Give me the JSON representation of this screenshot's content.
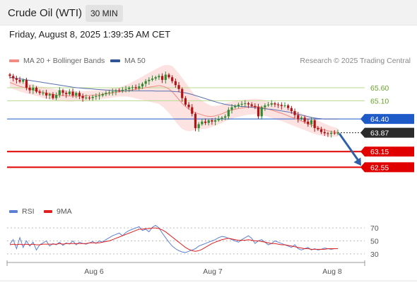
{
  "header": {
    "instrument": "Crude Oil (WTI)",
    "interval": "30 MIN",
    "datetime": "Friday, August 8, 2025 1:39:35 AM CET"
  },
  "legend": {
    "items": [
      {
        "label": "MA 20 + Bollinger Bands",
        "color": "#f28b82"
      },
      {
        "label": "MA 50",
        "color": "#2f5597"
      }
    ],
    "credit": "Research © 2025 Trading Central"
  },
  "rsi_legend": {
    "items": [
      {
        "label": "RSI",
        "color": "#5b7fd6"
      },
      {
        "label": "9MA",
        "color": "#e02020"
      }
    ]
  },
  "colors": {
    "bull": "#2e8b2e",
    "bear": "#b01414",
    "resistance": "#b9dc8f",
    "pivot": "#1e5ac8",
    "support": "#e00000",
    "current": "#2b2b2b",
    "band_fill": "#fde2e2",
    "ma20": "#f28b82",
    "ma50": "#5a6fb0",
    "forecast_arrow": "#2f5fa6"
  },
  "chart_data": {
    "type": "candlestick",
    "x_ticks": [
      "Aug 6",
      "Aug 7",
      "Aug 8"
    ],
    "ylim": [
      62.45,
      66.25
    ],
    "levels": [
      {
        "label": "65.60",
        "value": 65.6,
        "kind": "resistance"
      },
      {
        "label": "65.10",
        "value": 65.1,
        "kind": "resistance"
      },
      {
        "label": "64.40",
        "value": 64.4,
        "kind": "pivot"
      },
      {
        "label": "63.87",
        "value": 63.87,
        "kind": "current"
      },
      {
        "label": "63.15",
        "value": 63.15,
        "kind": "support"
      },
      {
        "label": "62.55",
        "value": 62.55,
        "kind": "support"
      }
    ],
    "closes": [
      66.05,
      65.96,
      65.9,
      65.83,
      65.9,
      65.6,
      65.5,
      65.6,
      65.45,
      65.4,
      65.4,
      65.3,
      65.35,
      65.2,
      65.32,
      65.5,
      65.4,
      65.35,
      65.45,
      65.3,
      65.4,
      65.28,
      65.2,
      65.22,
      65.2,
      65.25,
      65.28,
      65.3,
      65.35,
      65.4,
      65.42,
      65.45,
      65.5,
      65.48,
      65.52,
      65.55,
      65.6,
      65.62,
      65.58,
      65.65,
      65.75,
      65.85,
      65.9,
      65.95,
      66.0,
      66.05,
      65.9,
      66.1,
      66.0,
      65.85,
      65.7,
      65.55,
      65.2,
      64.95,
      64.85,
      64.6,
      64.05,
      64.2,
      64.3,
      64.25,
      64.35,
      64.3,
      64.35,
      64.4,
      64.45,
      64.5,
      64.75,
      64.85,
      64.9,
      64.95,
      64.98,
      65.0,
      64.96,
      64.9,
      64.86,
      64.5,
      64.85,
      64.92,
      64.95,
      65.0,
      64.96,
      64.94,
      64.9,
      64.92,
      64.82,
      64.7,
      64.55,
      64.4,
      64.45,
      64.3,
      64.2,
      64.35,
      64.05,
      64.0,
      63.9,
      63.85,
      63.83,
      63.87,
      63.85,
      63.87
    ],
    "ma20": [
      65.8,
      65.75,
      65.7,
      65.65,
      65.62,
      65.58,
      65.55,
      65.52,
      65.48,
      65.45,
      65.42,
      65.4,
      65.37,
      65.35,
      65.32,
      65.3,
      65.3,
      65.29,
      65.28,
      65.28,
      65.27,
      65.27,
      65.28,
      65.29,
      65.3,
      65.31,
      65.32,
      65.33,
      65.35,
      65.37,
      65.38,
      65.4,
      65.42,
      65.44,
      65.46,
      65.48,
      65.5,
      65.52,
      65.54,
      65.56,
      65.58,
      65.6,
      65.62,
      65.64,
      65.66,
      65.68,
      65.66,
      65.62,
      65.55,
      65.45,
      65.3,
      65.15,
      65.0,
      64.88,
      64.78,
      64.7,
      64.64,
      64.6,
      64.56,
      64.52,
      64.5,
      64.5,
      64.52,
      64.56,
      64.6,
      64.65,
      64.7,
      64.74,
      64.77,
      64.8,
      64.82,
      64.84,
      64.86,
      64.87,
      64.88,
      64.87,
      64.85,
      64.82,
      64.78,
      64.74,
      64.7,
      64.66,
      64.62,
      64.57,
      64.52,
      64.47,
      64.42,
      64.37,
      64.32,
      64.27,
      64.22,
      64.17,
      64.12,
      64.07,
      64.02,
      63.98,
      63.95,
      63.92,
      63.9,
      63.88
    ],
    "ma50": [
      66.0,
      65.98,
      65.96,
      65.94,
      65.92,
      65.9,
      65.88,
      65.86,
      65.84,
      65.82,
      65.8,
      65.78,
      65.76,
      65.74,
      65.72,
      65.7,
      65.68,
      65.66,
      65.64,
      65.62,
      65.6,
      65.59,
      65.58,
      65.57,
      65.56,
      65.55,
      65.54,
      65.53,
      65.52,
      65.51,
      65.5,
      65.49,
      65.48,
      65.48,
      65.48,
      65.48,
      65.48,
      65.48,
      65.48,
      65.48,
      65.48,
      65.48,
      65.48,
      65.48,
      65.47,
      65.47,
      65.47,
      65.47,
      65.47,
      65.46,
      65.45,
      65.44,
      65.42,
      65.4,
      65.37,
      65.34,
      65.3,
      65.26,
      65.22,
      65.18,
      65.14,
      65.1,
      65.06,
      65.02,
      64.99,
      64.96,
      64.94,
      64.92,
      64.9,
      64.89,
      64.88,
      64.87,
      64.86,
      64.85,
      64.84,
      64.82,
      64.8,
      64.79,
      64.78,
      64.77,
      64.75,
      64.73,
      64.71,
      64.69,
      64.67,
      64.64,
      64.61,
      64.58,
      64.55,
      64.52,
      64.49,
      64.46,
      64.44,
      64.42,
      64.41,
      64.4,
      64.4,
      64.4,
      64.4,
      64.4
    ],
    "bb_width": [
      0.2,
      0.2,
      0.2,
      0.2,
      0.2,
      0.2,
      0.2,
      0.2,
      0.2,
      0.2,
      0.22,
      0.22,
      0.22,
      0.22,
      0.22,
      0.22,
      0.22,
      0.22,
      0.22,
      0.22,
      0.18,
      0.18,
      0.18,
      0.18,
      0.18,
      0.18,
      0.18,
      0.18,
      0.18,
      0.18,
      0.18,
      0.18,
      0.18,
      0.18,
      0.2,
      0.22,
      0.25,
      0.3,
      0.35,
      0.4,
      0.45,
      0.5,
      0.55,
      0.6,
      0.65,
      0.7,
      0.78,
      0.85,
      0.92,
      0.98,
      1.0,
      1.0,
      0.98,
      0.92,
      0.85,
      0.75,
      0.65,
      0.6,
      0.55,
      0.5,
      0.45,
      0.4,
      0.38,
      0.36,
      0.35,
      0.35,
      0.34,
      0.33,
      0.32,
      0.32,
      0.31,
      0.3,
      0.3,
      0.3,
      0.3,
      0.3,
      0.3,
      0.3,
      0.3,
      0.3,
      0.3,
      0.3,
      0.3,
      0.3,
      0.3,
      0.3,
      0.3,
      0.3,
      0.3,
      0.3,
      0.3,
      0.3,
      0.3,
      0.28,
      0.26,
      0.24,
      0.22,
      0.2,
      0.18,
      0.16
    ],
    "rsi": {
      "y_ticks": [
        70,
        50,
        30
      ],
      "ylim": [
        20,
        80
      ],
      "rsi": [
        45,
        52,
        38,
        55,
        40,
        50,
        42,
        48,
        36,
        44,
        47,
        50,
        42,
        46,
        44,
        48,
        43,
        47,
        45,
        50,
        44,
        48,
        46,
        45,
        47,
        49,
        46,
        50,
        48,
        52,
        55,
        58,
        60,
        62,
        58,
        63,
        66,
        68,
        70,
        72,
        66,
        68,
        64,
        71,
        74,
        70,
        62,
        55,
        48,
        42,
        38,
        35,
        33,
        32,
        34,
        36,
        38,
        42,
        44,
        46,
        48,
        50,
        52,
        55,
        57,
        56,
        54,
        52,
        50,
        48,
        52,
        55,
        58,
        54,
        46,
        50,
        52,
        48,
        44,
        46,
        50,
        48,
        46,
        44,
        42,
        40,
        44,
        38,
        36,
        38,
        40,
        36,
        38,
        36,
        37,
        39,
        38,
        37,
        38,
        38
      ],
      "ma9": [
        44,
        45,
        44,
        45,
        44,
        45,
        44,
        45,
        44,
        44,
        45,
        45,
        45,
        45,
        45,
        46,
        45,
        46,
        46,
        46,
        46,
        46,
        46,
        46,
        47,
        47,
        47,
        47,
        48,
        49,
        50,
        52,
        54,
        56,
        58,
        60,
        62,
        64,
        66,
        68,
        68,
        69,
        69,
        70,
        70,
        69,
        67,
        64,
        60,
        56,
        52,
        48,
        44,
        40,
        37,
        35,
        34,
        35,
        37,
        40,
        43,
        46,
        48,
        50,
        52,
        53,
        54,
        53,
        52,
        51,
        51,
        51,
        52,
        51,
        50,
        50,
        49,
        48,
        47,
        46,
        46,
        45,
        44,
        44,
        43,
        42,
        41,
        40,
        39,
        38,
        38,
        37,
        37,
        37,
        37,
        37,
        38,
        38,
        38,
        38
      ]
    }
  }
}
